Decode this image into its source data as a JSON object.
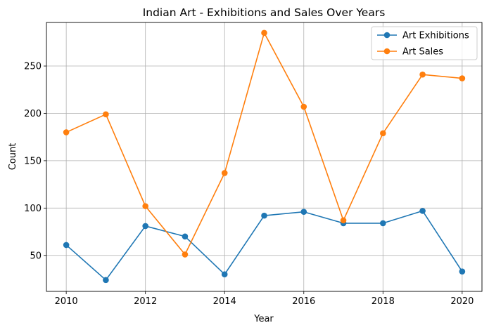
{
  "chart_data": {
    "type": "line",
    "title": "Indian Art - Exhibitions and Sales Over Years",
    "xlabel": "Year",
    "ylabel": "Count",
    "x": [
      2010,
      2011,
      2012,
      2013,
      2014,
      2015,
      2016,
      2017,
      2018,
      2019,
      2020
    ],
    "xticks": [
      2010,
      2012,
      2014,
      2016,
      2018,
      2020
    ],
    "yticks": [
      50,
      100,
      150,
      200,
      250
    ],
    "xlim": [
      2009.5,
      2020.5
    ],
    "ylim": [
      12,
      296
    ],
    "grid": true,
    "legend_position": "top-right",
    "series": [
      {
        "name": "Art Exhibitions",
        "color": "#1f77b4",
        "values": [
          61,
          24,
          81,
          70,
          30,
          92,
          96,
          84,
          84,
          97,
          33
        ]
      },
      {
        "name": "Art Sales",
        "color": "#ff7f0e",
        "values": [
          180,
          199,
          102,
          51,
          137,
          285,
          207,
          87,
          179,
          241,
          237
        ]
      }
    ]
  }
}
